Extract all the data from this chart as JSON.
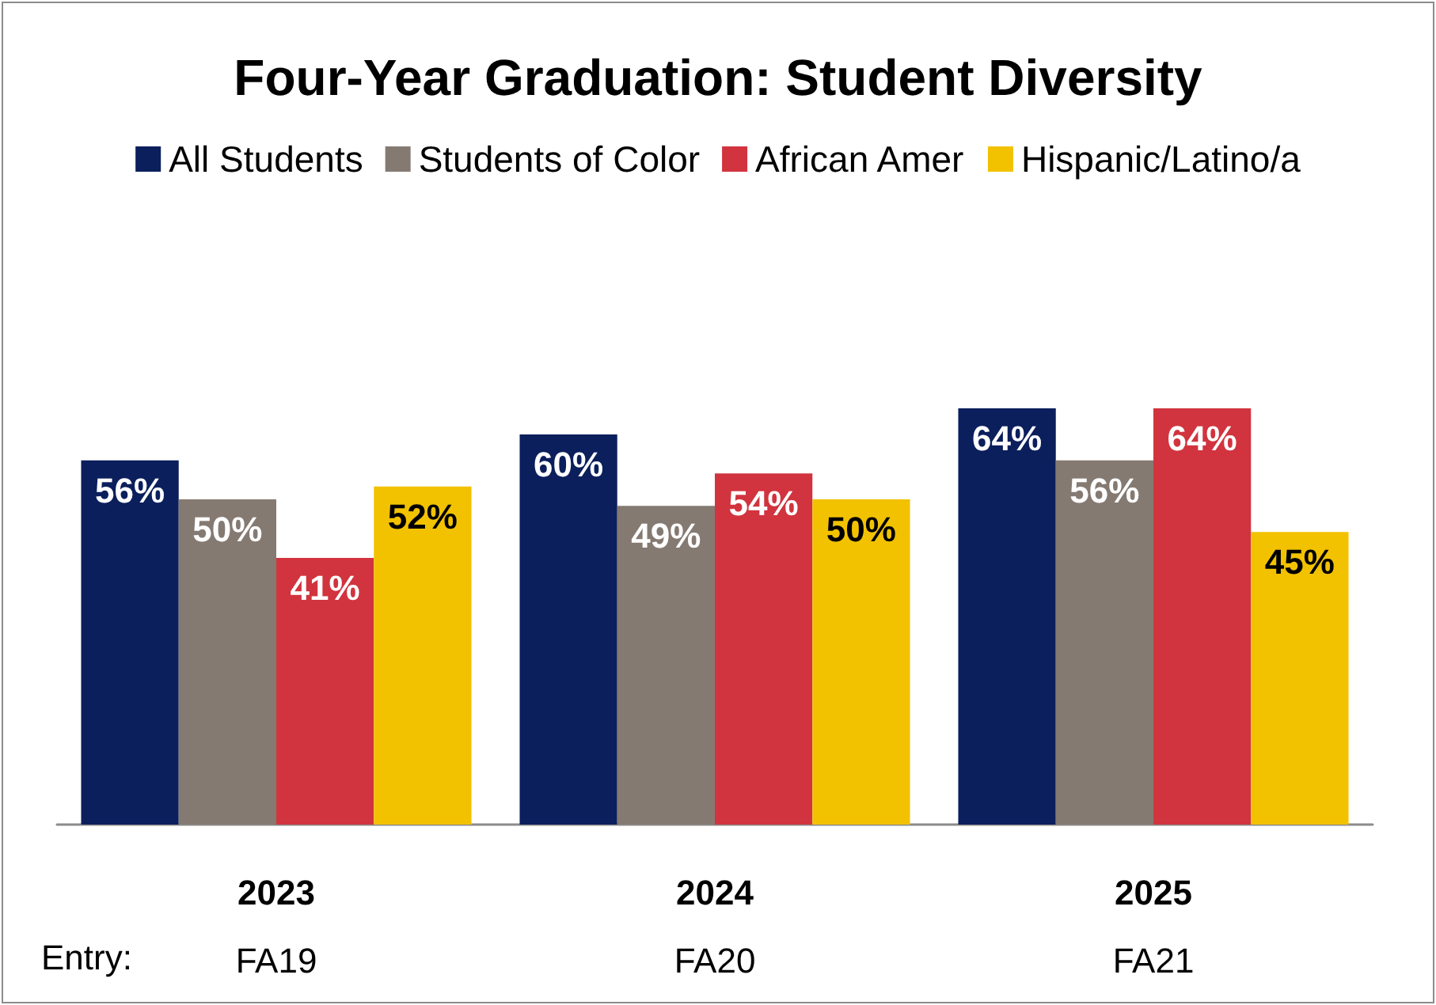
{
  "chart_data": {
    "type": "bar",
    "title": "Four-Year Graduation: Student Diversity",
    "categories": [
      "2023",
      "2024",
      "2025"
    ],
    "series": [
      {
        "name": "All Students",
        "color": "#0b1f5c",
        "values": [
          56,
          60,
          64
        ],
        "value_labels": [
          "56%",
          "60%",
          "64%"
        ]
      },
      {
        "name": "Students of Color",
        "color": "#857a72",
        "values": [
          50,
          49,
          56
        ],
        "value_labels": [
          "50%",
          "49%",
          "56%"
        ]
      },
      {
        "name": "African Amer",
        "color": "#d1343e",
        "values": [
          41,
          54,
          64
        ],
        "value_labels": [
          "41%",
          "54%",
          "64%"
        ]
      },
      {
        "name": "Hispanic/Latino/a",
        "color": "#f2c200",
        "values": [
          52,
          50,
          45
        ],
        "value_labels": [
          "52%",
          "50%",
          "45%"
        ]
      }
    ],
    "legend": "top",
    "tick_labels": "x",
    "annotations": [
      "Entry:",
      "FA19",
      "FA20",
      "FA21"
    ]
  }
}
